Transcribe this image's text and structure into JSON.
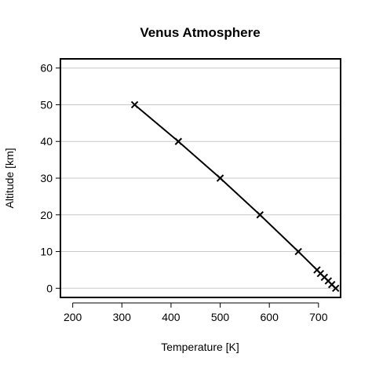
{
  "chart_data": {
    "type": "line",
    "title": "Venus Atmosphere",
    "xlabel": "Temperature [K]",
    "ylabel": "Altitude [km]",
    "xlim": [
      175,
      745
    ],
    "ylim": [
      -2.5,
      62.5
    ],
    "xticks": [
      200,
      300,
      400,
      500,
      600,
      700
    ],
    "yticks": [
      0,
      10,
      20,
      30,
      40,
      50,
      60
    ],
    "grid": "horizontal",
    "marker": "x",
    "series": [
      {
        "x": [
          735,
          727,
          720,
          712,
          704,
          697,
          659,
          581,
          500,
          415,
          326
        ],
        "y": [
          0,
          1,
          2,
          3,
          4,
          5,
          10,
          20,
          30,
          40,
          50
        ]
      }
    ]
  }
}
